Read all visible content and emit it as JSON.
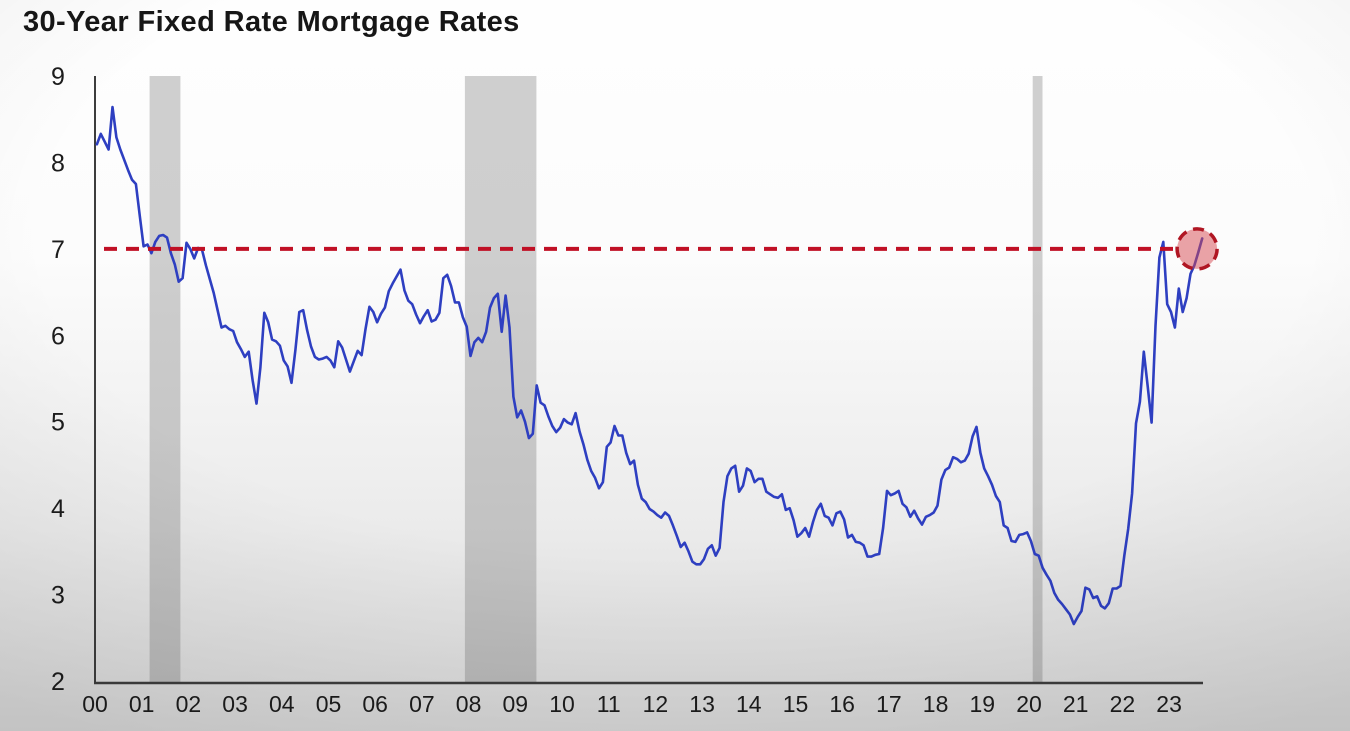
{
  "title": "30-Year Fixed Rate Mortgage Rates",
  "colors": {
    "background_top": "#fdfdfd",
    "background_bottom": "#d5d5d5",
    "axis": "#3d3d3d",
    "text": "#1c1c1c",
    "line": "#2e3fc1",
    "recession_band": "rgba(120,120,120,0.35)",
    "reference_red": "#c01025",
    "highlight_fill": "rgba(214,72,80,0.5)",
    "highlight_stroke": "#b01623"
  },
  "chart_data": {
    "type": "line",
    "title": "30-Year Fixed Rate Mortgage Rates",
    "xlabel": "",
    "ylabel": "",
    "x_tick_labels": [
      "00",
      "01",
      "02",
      "03",
      "04",
      "05",
      "06",
      "07",
      "08",
      "09",
      "10",
      "11",
      "12",
      "13",
      "14",
      "15",
      "16",
      "17",
      "18",
      "19",
      "20",
      "21",
      "22",
      "23"
    ],
    "y_ticks": [
      9,
      8,
      7,
      6,
      5,
      4,
      3,
      2
    ],
    "xlim": [
      2000,
      2023.9
    ],
    "ylim": [
      2,
      9
    ],
    "grid": false,
    "legend": "none",
    "reference_line": {
      "value": 7.0,
      "style": "dashed"
    },
    "highlight_circle": {
      "x": 2023.6,
      "value": 7.0,
      "style": "dashed-circle"
    },
    "recession_bands": [
      {
        "start": 2001.17,
        "end": 2001.83
      },
      {
        "start": 2007.92,
        "end": 2009.45
      },
      {
        "start": 2020.08,
        "end": 2020.29
      }
    ],
    "series": [
      {
        "name": "30-year fixed rate mortgage rate (%)",
        "cadence": "monthly",
        "monthly_values": {
          "2000": [
            8.21,
            8.33,
            8.24,
            8.15,
            8.64,
            8.29,
            8.15,
            8.03,
            7.91,
            7.8,
            7.75,
            7.38
          ],
          "2001": [
            7.03,
            7.05,
            6.95,
            7.08,
            7.15,
            7.16,
            7.13,
            6.95,
            6.82,
            6.62,
            6.66,
            7.07
          ],
          "2002": [
            7.0,
            6.89,
            7.01,
            6.99,
            6.81,
            6.65,
            6.49,
            6.29,
            6.09,
            6.11,
            6.07,
            6.05
          ],
          "2003": [
            5.92,
            5.84,
            5.75,
            5.81,
            5.48,
            5.21,
            5.63,
            6.26,
            6.15,
            5.95,
            5.93,
            5.88
          ],
          "2004": [
            5.71,
            5.64,
            5.45,
            5.83,
            6.27,
            6.29,
            6.06,
            5.87,
            5.75,
            5.72,
            5.73,
            5.75
          ],
          "2005": [
            5.71,
            5.63,
            5.93,
            5.86,
            5.72,
            5.58,
            5.7,
            5.82,
            5.77,
            6.07,
            6.33,
            6.27
          ],
          "2006": [
            6.15,
            6.25,
            6.32,
            6.51,
            6.6,
            6.68,
            6.76,
            6.52,
            6.4,
            6.36,
            6.24,
            6.14
          ],
          "2007": [
            6.22,
            6.29,
            6.16,
            6.18,
            6.26,
            6.66,
            6.7,
            6.57,
            6.38,
            6.38,
            6.21,
            6.1
          ],
          "2008": [
            5.76,
            5.92,
            5.97,
            5.92,
            6.04,
            6.32,
            6.43,
            6.48,
            6.04,
            6.46,
            6.09,
            5.29
          ],
          "2009": [
            5.05,
            5.13,
            5.0,
            4.81,
            4.86,
            5.42,
            5.22,
            5.19,
            5.06,
            4.95,
            4.88,
            4.93
          ],
          "2010": [
            5.03,
            4.99,
            4.97,
            5.1,
            4.89,
            4.74,
            4.56,
            4.43,
            4.35,
            4.23,
            4.3,
            4.71
          ],
          "2011": [
            4.76,
            4.95,
            4.84,
            4.84,
            4.64,
            4.51,
            4.55,
            4.27,
            4.11,
            4.07,
            3.99,
            3.96
          ],
          "2012": [
            3.92,
            3.89,
            3.95,
            3.91,
            3.8,
            3.68,
            3.55,
            3.6,
            3.5,
            3.38,
            3.35,
            3.35
          ],
          "2013": [
            3.41,
            3.53,
            3.57,
            3.45,
            3.54,
            4.07,
            4.37,
            4.46,
            4.49,
            4.19,
            4.26,
            4.46
          ],
          "2014": [
            4.43,
            4.3,
            4.34,
            4.34,
            4.19,
            4.16,
            4.13,
            4.12,
            4.16,
            3.98,
            4.0,
            3.86
          ],
          "2015": [
            3.67,
            3.71,
            3.77,
            3.67,
            3.84,
            3.98,
            4.05,
            3.91,
            3.89,
            3.8,
            3.94,
            3.96
          ],
          "2016": [
            3.87,
            3.66,
            3.69,
            3.61,
            3.6,
            3.57,
            3.44,
            3.44,
            3.46,
            3.47,
            3.77,
            4.2
          ],
          "2017": [
            4.15,
            4.17,
            4.2,
            4.05,
            4.01,
            3.9,
            3.97,
            3.88,
            3.81,
            3.9,
            3.92,
            3.95
          ],
          "2018": [
            4.03,
            4.33,
            4.44,
            4.47,
            4.59,
            4.57,
            4.53,
            4.55,
            4.63,
            4.83,
            4.94,
            4.64
          ],
          "2019": [
            4.46,
            4.37,
            4.27,
            4.14,
            4.07,
            3.8,
            3.77,
            3.62,
            3.61,
            3.69,
            3.7,
            3.72
          ],
          "2020": [
            3.62,
            3.47,
            3.45,
            3.31,
            3.23,
            3.16,
            3.02,
            2.94,
            2.89,
            2.83,
            2.77,
            2.66
          ],
          "2021": [
            2.74,
            2.81,
            3.08,
            3.06,
            2.96,
            2.98,
            2.87,
            2.84,
            2.9,
            3.07,
            3.07,
            3.1
          ],
          "2022": [
            3.45,
            3.76,
            4.17,
            4.98,
            5.23,
            5.81,
            5.41,
            4.99,
            6.11,
            6.9,
            7.08,
            6.36
          ],
          "2023": [
            6.27,
            6.09,
            6.54,
            6.27,
            6.43,
            6.71,
            6.81,
            6.96,
            7.12
          ]
        }
      }
    ]
  }
}
